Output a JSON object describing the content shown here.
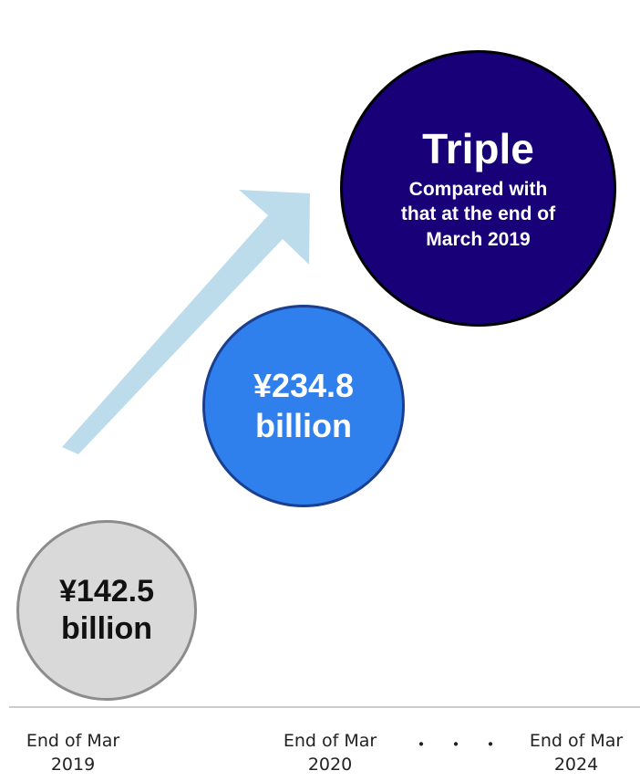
{
  "chart_data": {
    "type": "bar",
    "categories": [
      "End of Mar 2019",
      "End of Mar 2020",
      "End of Mar 2024"
    ],
    "values": [
      142.5,
      234.8,
      null
    ],
    "value_labels": [
      {
        "line1": "¥142.5",
        "line2": "billion"
      },
      {
        "line1": "¥234.8",
        "line2": "billion"
      }
    ],
    "target": {
      "title": "Triple",
      "subtitle_lines": [
        "Compared with",
        "that at the end of",
        "March 2019"
      ]
    },
    "axis_labels": [
      {
        "line1": "End of Mar",
        "line2": "2019"
      },
      {
        "line1": "End of Mar",
        "line2": "2020"
      },
      {
        "line1": "End of Mar",
        "line2": "2024"
      }
    ],
    "ellipsis": "・・・",
    "colors": {
      "bubble_2019_fill": "#d9d9d9",
      "bubble_2020_fill": "#2f80ed",
      "bubble_2024_fill": "#170078",
      "arrow": "#bcdcec",
      "baseline": "#cccccc"
    }
  }
}
